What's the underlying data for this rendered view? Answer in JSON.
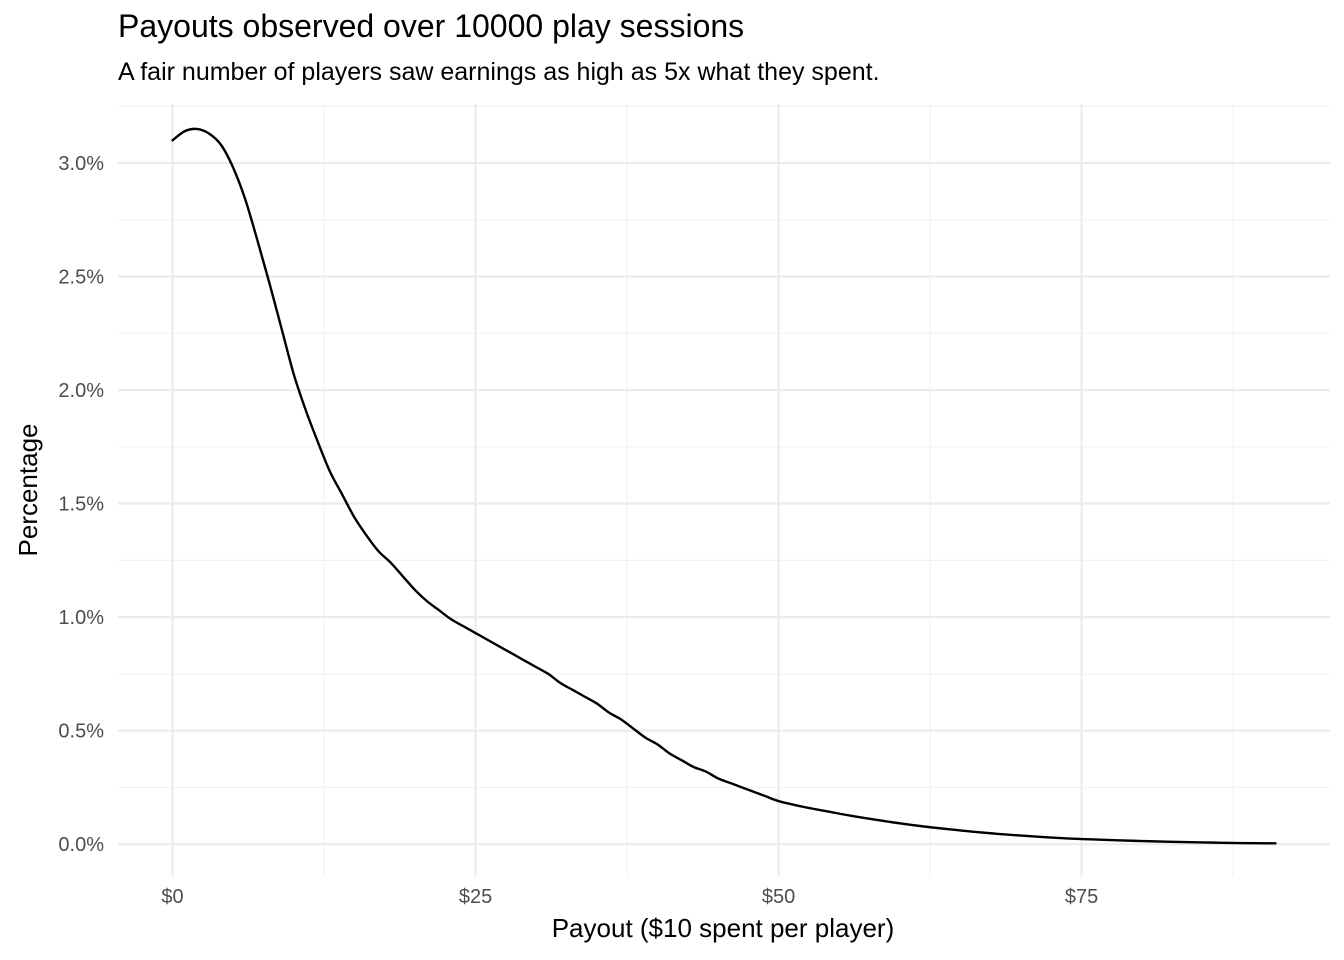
{
  "chart_data": {
    "type": "line",
    "title": "Payouts observed over 10000 play sessions",
    "subtitle": "A fair number of players saw earnings as high as 5x what they spent.",
    "xlabel": "Payout ($10 spent per player)",
    "ylabel": "Percentage",
    "xlim": [
      -4.5,
      95.5
    ],
    "ylim": [
      -0.14,
      3.26
    ],
    "x_ticks": [
      0,
      25,
      50,
      75
    ],
    "x_tick_labels": [
      "$0",
      "$25",
      "$50",
      "$75"
    ],
    "x_minor_ticks": [
      12.5,
      37.5,
      62.5,
      87.5
    ],
    "y_ticks": [
      0,
      0.5,
      1.0,
      1.5,
      2.0,
      2.5,
      3.0
    ],
    "y_tick_labels": [
      "0.0%",
      "0.5%",
      "1.0%",
      "1.5%",
      "2.0%",
      "2.5%",
      "3.0%"
    ],
    "y_minor_ticks": [
      0.25,
      0.75,
      1.25,
      1.75,
      2.25,
      2.75,
      3.25
    ],
    "grid": true,
    "legend": "none",
    "line_color": "#000000",
    "series": [
      {
        "x": [
          0,
          1,
          2,
          3,
          4,
          5,
          6,
          7,
          8,
          9,
          10,
          11,
          12,
          13,
          14,
          15,
          16,
          17,
          18,
          19,
          20,
          21,
          22,
          23,
          24,
          25,
          26,
          27,
          28,
          29,
          30,
          31,
          32,
          33,
          34,
          35,
          36,
          37,
          38,
          39,
          40,
          41,
          42,
          43,
          44,
          45,
          46,
          47,
          48,
          49,
          50,
          52,
          54,
          56,
          58,
          60,
          62,
          64,
          66,
          68,
          70,
          72,
          74,
          76,
          78,
          80,
          82,
          84,
          86,
          88,
          91
        ],
        "values": [
          3.1,
          3.14,
          3.15,
          3.13,
          3.08,
          2.98,
          2.84,
          2.66,
          2.47,
          2.27,
          2.07,
          1.91,
          1.77,
          1.64,
          1.54,
          1.44,
          1.36,
          1.29,
          1.24,
          1.18,
          1.12,
          1.07,
          1.03,
          0.99,
          0.96,
          0.93,
          0.9,
          0.87,
          0.84,
          0.81,
          0.78,
          0.75,
          0.71,
          0.68,
          0.65,
          0.62,
          0.58,
          0.55,
          0.51,
          0.47,
          0.44,
          0.4,
          0.37,
          0.34,
          0.32,
          0.29,
          0.27,
          0.25,
          0.23,
          0.21,
          0.19,
          0.165,
          0.145,
          0.125,
          0.108,
          0.092,
          0.078,
          0.066,
          0.055,
          0.046,
          0.038,
          0.031,
          0.025,
          0.021,
          0.017,
          0.014,
          0.011,
          0.009,
          0.007,
          0.005,
          0.004
        ]
      }
    ]
  }
}
